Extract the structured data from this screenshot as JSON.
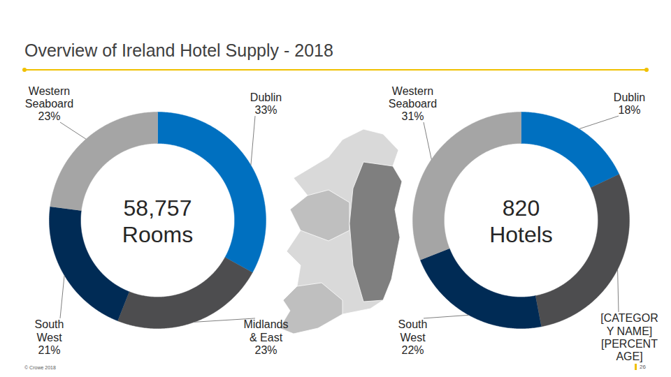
{
  "title": "Overview of Ireland Hotel Supply - 2018",
  "footer": "© Crowe 2018",
  "page_number": 26,
  "chart_data": [
    {
      "type": "donut",
      "center_text": [
        "58,757",
        "Rooms"
      ],
      "categories": [
        "Dublin",
        "Midlands & East",
        "South West",
        "Western Seaboard"
      ],
      "values": [
        33,
        23,
        21,
        23
      ],
      "value_labels": [
        "33%",
        "23%",
        "21%",
        "23%"
      ],
      "colors": [
        "#0070c0",
        "#4d4d4f",
        "#002b55",
        "#a5a5a5"
      ],
      "data_labels": true
    },
    {
      "type": "donut",
      "center_text": [
        "820",
        "Hotels"
      ],
      "categories": [
        "Dublin",
        "[CATEGORY NAME]",
        "South West",
        "Western Seaboard"
      ],
      "values": [
        18,
        29,
        22,
        31
      ],
      "value_labels": [
        "18%",
        "[PERCENTAGE]",
        "22%",
        "31%"
      ],
      "colors": [
        "#0070c0",
        "#4d4d4f",
        "#002b55",
        "#a5a5a5"
      ],
      "data_labels": true
    }
  ]
}
